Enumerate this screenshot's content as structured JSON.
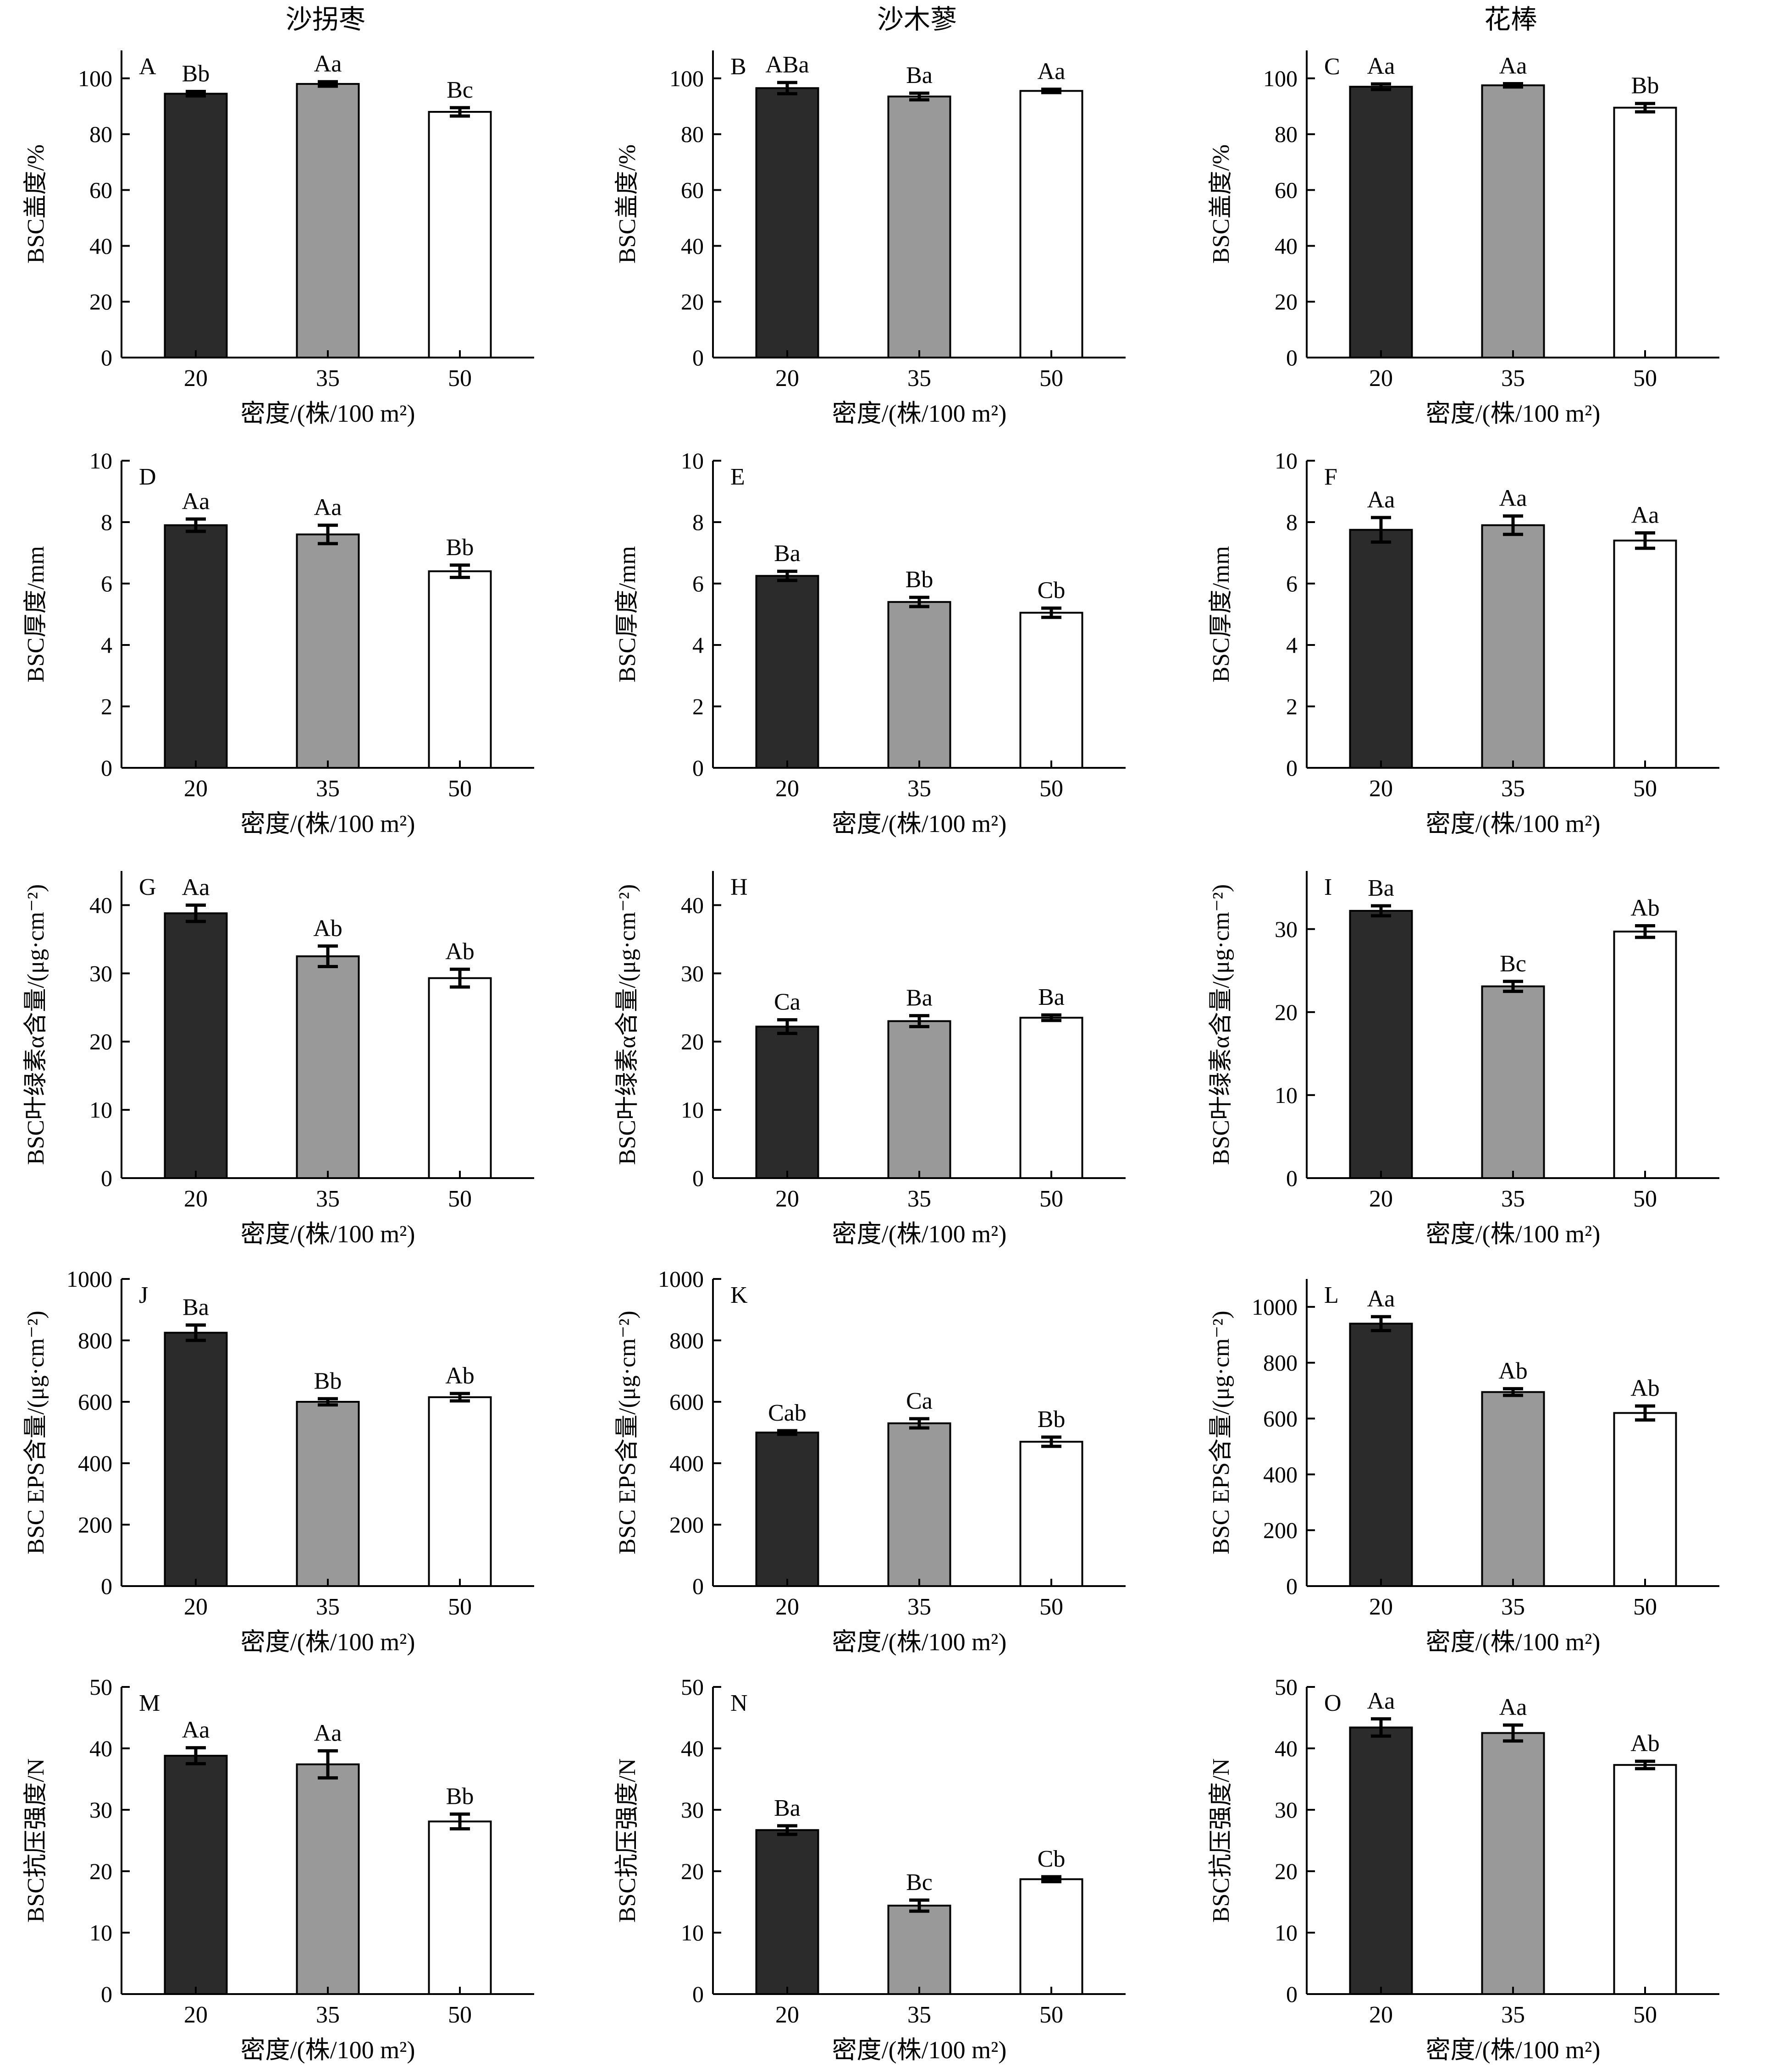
{
  "column_titles": [
    "沙拐枣",
    "沙木蓼",
    "花棒"
  ],
  "chart_data": [
    {
      "type": "bar",
      "panel": "A",
      "column": "沙拐枣",
      "categories": [
        "20",
        "35",
        "50"
      ],
      "values": [
        94.5,
        98.0,
        88.0
      ],
      "errors": [
        0.8,
        0.8,
        1.5
      ],
      "labels": [
        "Bb",
        "Aa",
        "Bc"
      ],
      "ylim": [
        0,
        110
      ],
      "yticks": [
        0,
        20,
        40,
        60,
        80,
        100
      ],
      "ylabel": "BSC盖度/%",
      "xlabel": "密度/(株/100 m²)"
    },
    {
      "type": "bar",
      "panel": "B",
      "column": "沙木蓼",
      "categories": [
        "20",
        "35",
        "50"
      ],
      "values": [
        96.5,
        93.5,
        95.5
      ],
      "errors": [
        2.0,
        1.2,
        0.6
      ],
      "labels": [
        "ABa",
        "Ba",
        "Aa"
      ],
      "ylim": [
        0,
        110
      ],
      "yticks": [
        0,
        20,
        40,
        60,
        80,
        100
      ],
      "ylabel": "BSC盖度/%",
      "xlabel": "密度/(株/100 m²)"
    },
    {
      "type": "bar",
      "panel": "C",
      "column": "花棒",
      "categories": [
        "20",
        "35",
        "50"
      ],
      "values": [
        97.0,
        97.5,
        89.5
      ],
      "errors": [
        1.0,
        0.6,
        1.5
      ],
      "labels": [
        "Aa",
        "Aa",
        "Bb"
      ],
      "ylim": [
        0,
        110
      ],
      "yticks": [
        0,
        20,
        40,
        60,
        80,
        100
      ],
      "ylabel": "BSC盖度/%",
      "xlabel": "密度/(株/100 m²)"
    },
    {
      "type": "bar",
      "panel": "D",
      "column": "沙拐枣",
      "categories": [
        "20",
        "35",
        "50"
      ],
      "values": [
        7.9,
        7.6,
        6.4
      ],
      "errors": [
        0.2,
        0.3,
        0.2
      ],
      "labels": [
        "Aa",
        "Aa",
        "Bb"
      ],
      "ylim": [
        0,
        10
      ],
      "yticks": [
        0,
        2,
        4,
        6,
        8,
        10
      ],
      "ylabel": "BSC厚度/mm",
      "xlabel": "密度/(株/100 m²)"
    },
    {
      "type": "bar",
      "panel": "E",
      "column": "沙木蓼",
      "categories": [
        "20",
        "35",
        "50"
      ],
      "values": [
        6.25,
        5.4,
        5.05
      ],
      "errors": [
        0.15,
        0.15,
        0.15
      ],
      "labels": [
        "Ba",
        "Bb",
        "Cb"
      ],
      "ylim": [
        0,
        10
      ],
      "yticks": [
        0,
        2,
        4,
        6,
        8,
        10
      ],
      "ylabel": "BSC厚度/mm",
      "xlabel": "密度/(株/100 m²)"
    },
    {
      "type": "bar",
      "panel": "F",
      "column": "花棒",
      "categories": [
        "20",
        "35",
        "50"
      ],
      "values": [
        7.75,
        7.9,
        7.4
      ],
      "errors": [
        0.4,
        0.3,
        0.25
      ],
      "labels": [
        "Aa",
        "Aa",
        "Aa"
      ],
      "ylim": [
        0,
        10
      ],
      "yticks": [
        0,
        2,
        4,
        6,
        8,
        10
      ],
      "ylabel": "BSC厚度/mm",
      "xlabel": "密度/(株/100 m²)"
    },
    {
      "type": "bar",
      "panel": "G",
      "column": "沙拐枣",
      "categories": [
        "20",
        "35",
        "50"
      ],
      "values": [
        38.8,
        32.5,
        29.3
      ],
      "errors": [
        1.2,
        1.5,
        1.3
      ],
      "labels": [
        "Aa",
        "Ab",
        "Ab"
      ],
      "ylim": [
        0,
        45
      ],
      "yticks": [
        0,
        10,
        20,
        30,
        40
      ],
      "ylabel": "BSC叶绿素α含量/(μg·cm⁻²)",
      "xlabel": "密度/(株/100 m²)"
    },
    {
      "type": "bar",
      "panel": "H",
      "column": "沙木蓼",
      "categories": [
        "20",
        "35",
        "50"
      ],
      "values": [
        22.2,
        23.0,
        23.5
      ],
      "errors": [
        1.0,
        0.8,
        0.4
      ],
      "labels": [
        "Ca",
        "Ba",
        "Ba"
      ],
      "ylim": [
        0,
        45
      ],
      "yticks": [
        0,
        10,
        20,
        30,
        40
      ],
      "ylabel": "BSC叶绿素α含量/(μg·cm⁻²)",
      "xlabel": "密度/(株/100 m²)"
    },
    {
      "type": "bar",
      "panel": "I",
      "column": "花棒",
      "categories": [
        "20",
        "35",
        "50"
      ],
      "values": [
        32.2,
        23.1,
        29.7
      ],
      "errors": [
        0.6,
        0.6,
        0.7
      ],
      "labels": [
        "Ba",
        "Bc",
        "Ab"
      ],
      "ylim": [
        0,
        37
      ],
      "yticks": [
        0,
        10,
        20,
        30
      ],
      "ylabel": "BSC叶绿素α含量/(μg·cm⁻²)",
      "xlabel": "密度/(株/100 m²)"
    },
    {
      "type": "bar",
      "panel": "J",
      "column": "沙拐枣",
      "categories": [
        "20",
        "35",
        "50"
      ],
      "values": [
        825,
        600,
        615
      ],
      "errors": [
        25,
        10,
        12
      ],
      "labels": [
        "Ba",
        "Bb",
        "Ab"
      ],
      "ylim": [
        0,
        1000
      ],
      "yticks": [
        0,
        200,
        400,
        600,
        800,
        1000
      ],
      "ylabel": "BSC EPS含量/(μg·cm⁻²)",
      "xlabel": "密度/(株/100 m²)"
    },
    {
      "type": "bar",
      "panel": "K",
      "column": "沙木蓼",
      "categories": [
        "20",
        "35",
        "50"
      ],
      "values": [
        500,
        530,
        470
      ],
      "errors": [
        6,
        15,
        15
      ],
      "labels": [
        "Cab",
        "Ca",
        "Bb"
      ],
      "ylim": [
        0,
        1000
      ],
      "yticks": [
        0,
        200,
        400,
        600,
        800,
        1000
      ],
      "ylabel": "BSC EPS含量/(μg·cm⁻²)",
      "xlabel": "密度/(株/100 m²)"
    },
    {
      "type": "bar",
      "panel": "L",
      "column": "花棒",
      "categories": [
        "20",
        "35",
        "50"
      ],
      "values": [
        940,
        695,
        620
      ],
      "errors": [
        25,
        12,
        25
      ],
      "labels": [
        "Aa",
        "Ab",
        "Ab"
      ],
      "ylim": [
        0,
        1100
      ],
      "yticks": [
        0,
        200,
        400,
        600,
        800,
        1000
      ],
      "ylabel": "BSC EPS含量/(μg·cm⁻²)",
      "xlabel": "密度/(株/100 m²)"
    },
    {
      "type": "bar",
      "panel": "M",
      "column": "沙拐枣",
      "categories": [
        "20",
        "35",
        "50"
      ],
      "values": [
        38.8,
        37.4,
        28.1
      ],
      "errors": [
        1.3,
        2.2,
        1.2
      ],
      "labels": [
        "Aa",
        "Aa",
        "Bb"
      ],
      "ylim": [
        0,
        50
      ],
      "yticks": [
        0,
        10,
        20,
        30,
        40,
        50
      ],
      "ylabel": "BSC抗压强度/N",
      "xlabel": "密度/(株/100 m²)"
    },
    {
      "type": "bar",
      "panel": "N",
      "column": "沙木蓼",
      "categories": [
        "20",
        "35",
        "50"
      ],
      "values": [
        26.7,
        14.4,
        18.7
      ],
      "errors": [
        0.7,
        0.9,
        0.4
      ],
      "labels": [
        "Ba",
        "Bc",
        "Cb"
      ],
      "ylim": [
        0,
        50
      ],
      "yticks": [
        0,
        10,
        20,
        30,
        40,
        50
      ],
      "ylabel": "BSC抗压强度/N",
      "xlabel": "密度/(株/100 m²)"
    },
    {
      "type": "bar",
      "panel": "O",
      "column": "花棒",
      "categories": [
        "20",
        "35",
        "50"
      ],
      "values": [
        43.4,
        42.5,
        37.3
      ],
      "errors": [
        1.4,
        1.3,
        0.6
      ],
      "labels": [
        "Aa",
        "Aa",
        "Ab"
      ],
      "ylim": [
        0,
        50
      ],
      "yticks": [
        0,
        10,
        20,
        30,
        40,
        50
      ],
      "ylabel": "BSC抗压强度/N",
      "xlabel": "密度/(株/100 m²)"
    }
  ],
  "bar_colors": [
    "#2b2b2b",
    "#999999",
    "#ffffff"
  ]
}
